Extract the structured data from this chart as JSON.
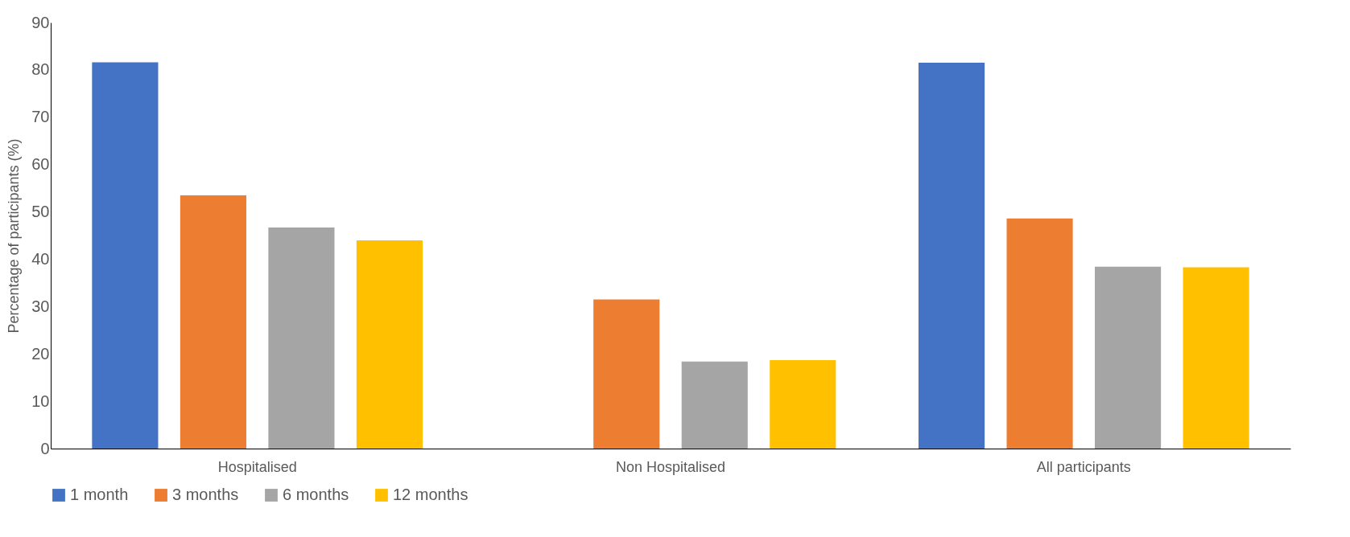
{
  "chart_data": {
    "type": "bar",
    "ylabel": "Percentage of participants (%)",
    "categories": [
      "Hospitalised",
      "Non Hospitalised",
      "All participants"
    ],
    "series": [
      {
        "name": "1 month",
        "color": "#4472c4",
        "values": [
          81.6,
          null,
          81.5
        ]
      },
      {
        "name": "3 months",
        "color": "#ed7d31",
        "values": [
          53.5,
          31.5,
          48.6
        ]
      },
      {
        "name": "6 months",
        "color": "#a5a5a5",
        "values": [
          46.7,
          18.4,
          38.4
        ]
      },
      {
        "name": "12 months",
        "color": "#ffc000",
        "values": [
          44.0,
          18.7,
          38.3
        ]
      }
    ],
    "ylim": [
      0,
      90
    ],
    "yticks": [
      0,
      10,
      20,
      30,
      40,
      50,
      60,
      70,
      80,
      90
    ],
    "grid": false,
    "legend": "bottom"
  }
}
